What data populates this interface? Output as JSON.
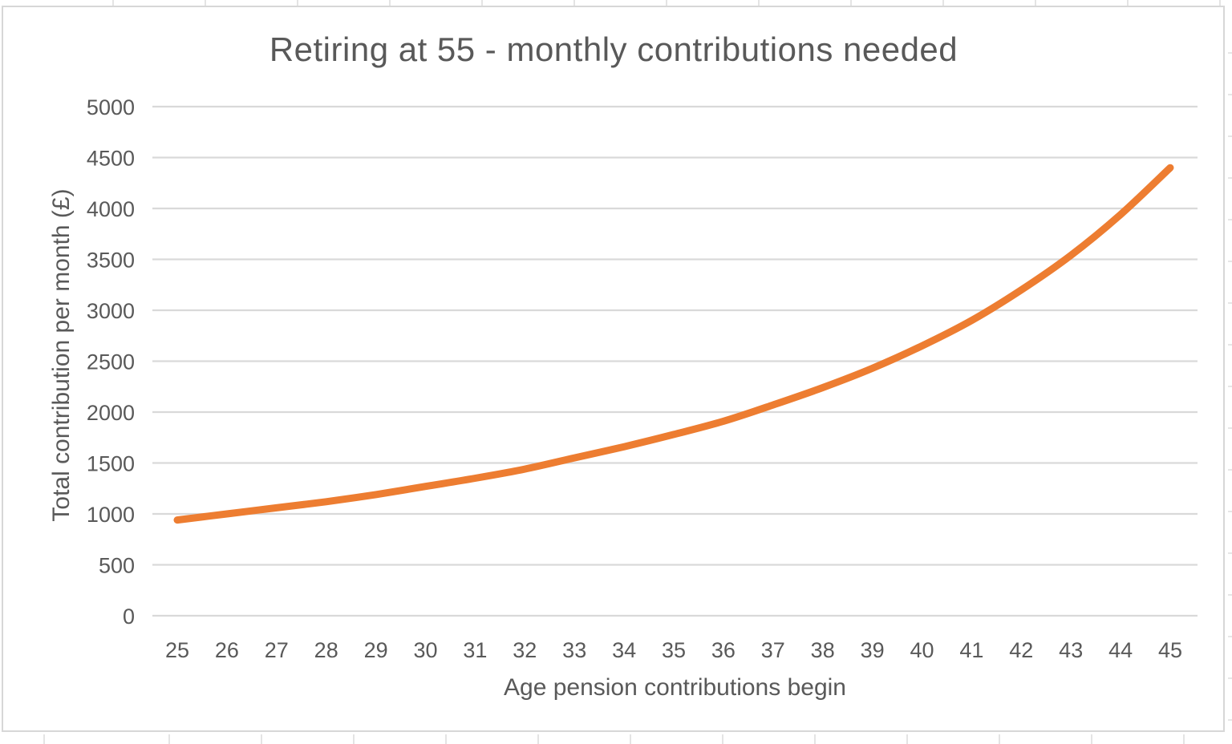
{
  "chart_data": {
    "type": "line",
    "title": "Retiring at 55 - monthly contributions needed",
    "xlabel": "Age pension contributions begin",
    "ylabel": "Total contribution per month (£)",
    "categories": [
      25,
      26,
      27,
      28,
      29,
      30,
      31,
      32,
      33,
      34,
      35,
      36,
      37,
      38,
      39,
      40,
      41,
      42,
      43,
      44,
      45
    ],
    "values": [
      940,
      1000,
      1060,
      1120,
      1190,
      1270,
      1350,
      1440,
      1550,
      1660,
      1780,
      1910,
      2070,
      2240,
      2430,
      2650,
      2900,
      3200,
      3540,
      3940,
      4400
    ],
    "ylim": [
      0,
      5000
    ],
    "ytick_step": 500,
    "grid": "horizontal-only",
    "legend": "none",
    "smooth": true,
    "colors": {
      "line": "#ED7D31",
      "gridline": "#D9D9D9",
      "text": "#595959",
      "frame_border": "#D7D7D7",
      "background": "#FFFFFF"
    }
  }
}
